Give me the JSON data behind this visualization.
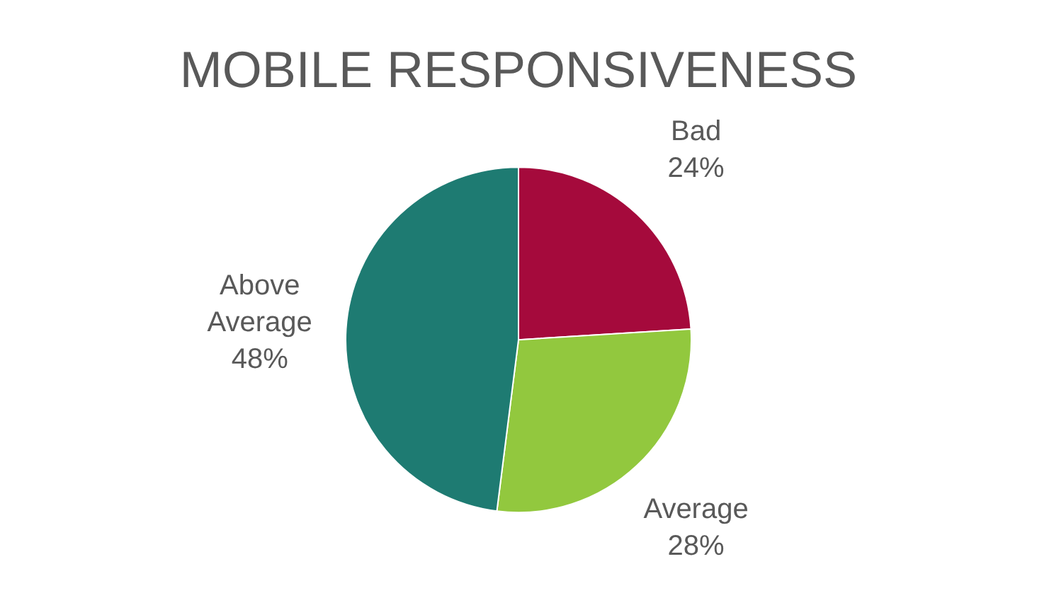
{
  "chart_data": {
    "type": "pie",
    "title": "MOBILE RESPONSIVENESS",
    "categories": [
      "Bad",
      "Average",
      "Above Average"
    ],
    "values": [
      24,
      28,
      48
    ],
    "colors": [
      "#a50a3c",
      "#92c83e",
      "#1e7b72"
    ],
    "value_labels": [
      "24%",
      "28%",
      "48%"
    ],
    "legend": false
  }
}
